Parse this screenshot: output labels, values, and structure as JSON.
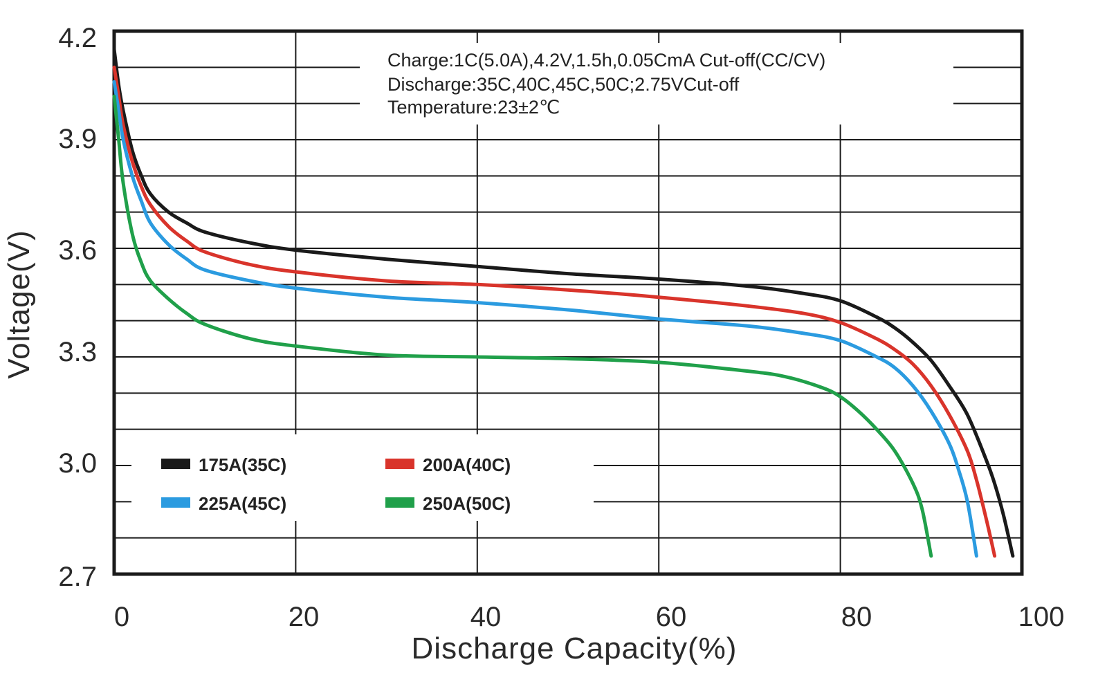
{
  "chart_data": {
    "type": "line",
    "title": "",
    "xlabel": "Discharge Capacity(%)",
    "ylabel": "Voltage(V)",
    "xlim": [
      0,
      100
    ],
    "ylim": [
      2.7,
      4.2
    ],
    "x_ticks": [
      "0",
      "20",
      "40",
      "60",
      "80",
      "100"
    ],
    "y_ticks": [
      "2.7",
      "3.0",
      "3.3",
      "3.6",
      "3.9",
      "4.2"
    ],
    "grid": true,
    "annotations": [
      "Charge:1C(5.0A),4.2V,1.5h,0.05CmA Cut-off(CC/CV)",
      "Discharge:35C,40C,45C,50C;2.75VCut-off",
      "Temperature:23±2℃"
    ],
    "legend_position": "bottom-left",
    "series": [
      {
        "name": "175A(35C)",
        "color": "#1a1a1a",
        "points": [
          [
            0,
            4.15
          ],
          [
            0.5,
            4.05
          ],
          [
            1,
            3.98
          ],
          [
            2,
            3.87
          ],
          [
            3,
            3.8
          ],
          [
            4,
            3.75
          ],
          [
            6,
            3.7
          ],
          [
            8,
            3.67
          ],
          [
            10,
            3.645
          ],
          [
            15,
            3.615
          ],
          [
            20,
            3.595
          ],
          [
            30,
            3.57
          ],
          [
            40,
            3.55
          ],
          [
            50,
            3.53
          ],
          [
            60,
            3.515
          ],
          [
            70,
            3.495
          ],
          [
            76,
            3.475
          ],
          [
            80,
            3.455
          ],
          [
            84,
            3.41
          ],
          [
            86,
            3.38
          ],
          [
            88,
            3.34
          ],
          [
            90,
            3.29
          ],
          [
            92,
            3.22
          ],
          [
            94,
            3.14
          ],
          [
            96,
            3.02
          ],
          [
            97,
            2.95
          ],
          [
            98,
            2.86
          ],
          [
            99,
            2.75
          ]
        ]
      },
      {
        "name": "200A(40C)",
        "color": "#d9342b",
        "points": [
          [
            0,
            4.1
          ],
          [
            0.5,
            4.02
          ],
          [
            1,
            3.94
          ],
          [
            2,
            3.84
          ],
          [
            3,
            3.77
          ],
          [
            4,
            3.72
          ],
          [
            6,
            3.66
          ],
          [
            8,
            3.62
          ],
          [
            10,
            3.59
          ],
          [
            15,
            3.555
          ],
          [
            20,
            3.535
          ],
          [
            30,
            3.51
          ],
          [
            40,
            3.5
          ],
          [
            50,
            3.485
          ],
          [
            60,
            3.465
          ],
          [
            70,
            3.44
          ],
          [
            76,
            3.42
          ],
          [
            80,
            3.395
          ],
          [
            84,
            3.35
          ],
          [
            86,
            3.32
          ],
          [
            88,
            3.28
          ],
          [
            90,
            3.22
          ],
          [
            92,
            3.14
          ],
          [
            94,
            3.04
          ],
          [
            95,
            2.96
          ],
          [
            96,
            2.86
          ],
          [
            97,
            2.75
          ]
        ]
      },
      {
        "name": "225A(45C)",
        "color": "#2b9be0",
        "points": [
          [
            0,
            4.06
          ],
          [
            0.5,
            3.98
          ],
          [
            1,
            3.9
          ],
          [
            2,
            3.8
          ],
          [
            3,
            3.73
          ],
          [
            4,
            3.67
          ],
          [
            6,
            3.61
          ],
          [
            8,
            3.57
          ],
          [
            10,
            3.54
          ],
          [
            15,
            3.51
          ],
          [
            20,
            3.49
          ],
          [
            30,
            3.465
          ],
          [
            40,
            3.45
          ],
          [
            50,
            3.43
          ],
          [
            60,
            3.405
          ],
          [
            70,
            3.385
          ],
          [
            76,
            3.365
          ],
          [
            80,
            3.345
          ],
          [
            84,
            3.3
          ],
          [
            86,
            3.27
          ],
          [
            88,
            3.22
          ],
          [
            90,
            3.15
          ],
          [
            92,
            3.06
          ],
          [
            93,
            2.99
          ],
          [
            94,
            2.9
          ],
          [
            95,
            2.75
          ]
        ]
      },
      {
        "name": "250A(50C)",
        "color": "#20a04a",
        "points": [
          [
            0,
            4.02
          ],
          [
            0.5,
            3.9
          ],
          [
            1,
            3.78
          ],
          [
            2,
            3.64
          ],
          [
            3,
            3.56
          ],
          [
            4,
            3.51
          ],
          [
            6,
            3.46
          ],
          [
            8,
            3.42
          ],
          [
            10,
            3.39
          ],
          [
            15,
            3.35
          ],
          [
            20,
            3.33
          ],
          [
            30,
            3.305
          ],
          [
            40,
            3.3
          ],
          [
            50,
            3.295
          ],
          [
            60,
            3.285
          ],
          [
            70,
            3.26
          ],
          [
            74,
            3.245
          ],
          [
            78,
            3.215
          ],
          [
            80,
            3.19
          ],
          [
            82,
            3.15
          ],
          [
            84,
            3.1
          ],
          [
            86,
            3.04
          ],
          [
            88,
            2.95
          ],
          [
            89,
            2.88
          ],
          [
            90,
            2.75
          ]
        ]
      }
    ]
  }
}
